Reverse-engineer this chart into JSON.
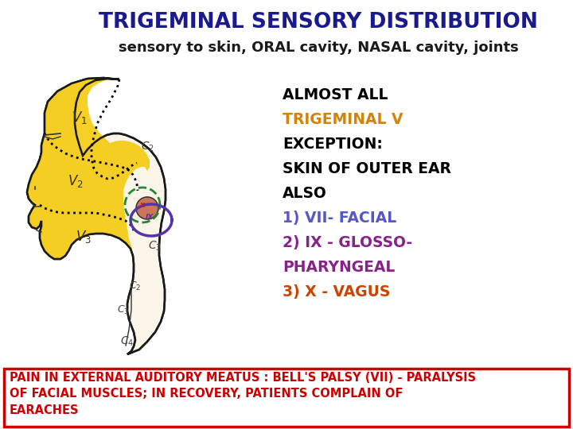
{
  "title": "TRIGEMINAL SENSORY DISTRIBUTION",
  "title_color": "#1a1a8c",
  "subtitle": "sensory to skin, ORAL cavity, NASAL cavity, joints",
  "subtitle_color": "#1a1a1a",
  "body_lines": [
    {
      "text": "ALMOST ALL",
      "color": "#000000",
      "bold": true
    },
    {
      "text": "TRIGEMINAL V",
      "color": "#d4820a",
      "bold": true
    },
    {
      "text": "EXCEPTION:",
      "color": "#000000",
      "bold": true
    },
    {
      "text": "SKIN OF OUTER EAR",
      "color": "#000000",
      "bold": true
    },
    {
      "text": "ALSO",
      "color": "#000000",
      "bold": true
    },
    {
      "text": "1) VII- FACIAL",
      "color": "#5555cc",
      "bold": true
    },
    {
      "text": "2) IX - GLOSSO-",
      "color": "#882288",
      "bold": true
    },
    {
      "text": "PHARYNGEAL",
      "color": "#882288",
      "bold": true
    },
    {
      "text": "3) X - VAGUS",
      "color": "#cc4400",
      "bold": true
    }
  ],
  "bottom_text": "PAIN IN EXTERNAL AUDITORY MEATUS : BELL'S PALSY (VII) - PARALYSIS\nOF FACIAL MUSCLES; IN RECOVERY, PATIENTS COMPLAIN OF\nEARACHES",
  "bottom_text_color": "#cc0000",
  "bottom_box_color": "#cc0000",
  "bg_color": "#ffffff",
  "head_face_color": "#faf0d0",
  "head_edge_color": "#222222",
  "yellow_fill": "#f5c800",
  "yellow_alpha": 0.85
}
